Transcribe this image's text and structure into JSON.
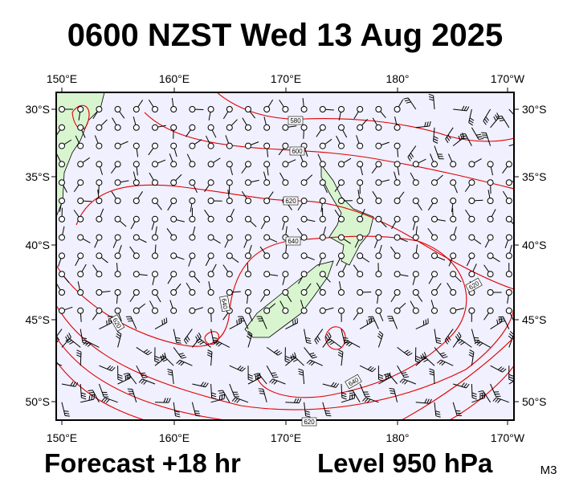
{
  "title": "0600 NZST Wed 13 Aug 2025",
  "map": {
    "lon_labels": [
      "150°E",
      "160°E",
      "170°E",
      "180°",
      "170°W"
    ],
    "lat_labels": [
      "30°S",
      "35°S",
      "40°S",
      "45°S",
      "50°S"
    ],
    "contour_labels": [
      "580",
      "600",
      "620",
      "640",
      "640",
      "620",
      "640",
      "620",
      "620"
    ]
  },
  "footer": {
    "forecast": "Forecast +18 hr",
    "level": "Level 950 hPa",
    "model": "M3"
  }
}
